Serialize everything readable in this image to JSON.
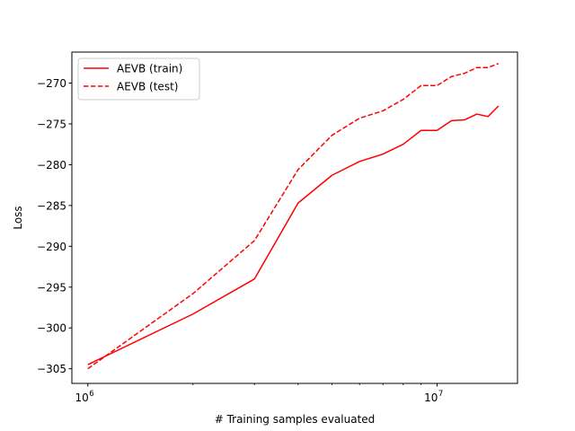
{
  "chart_data": {
    "type": "line",
    "xlabel": "# Training samples evaluated",
    "ylabel": "Loss",
    "xscale": "log",
    "xlim": [
      900000,
      17000000
    ],
    "ylim": [
      -306.8,
      -266.2
    ],
    "x_ticks": [
      {
        "value": 1000000,
        "base": "10",
        "exp": "6"
      },
      {
        "value": 10000000,
        "base": "10",
        "exp": "7"
      }
    ],
    "y_ticks": [
      {
        "value": -305,
        "label": "−305"
      },
      {
        "value": -300,
        "label": "−300"
      },
      {
        "value": -295,
        "label": "−295"
      },
      {
        "value": -290,
        "label": "−290"
      },
      {
        "value": -285,
        "label": "−285"
      },
      {
        "value": -280,
        "label": "−280"
      },
      {
        "value": -275,
        "label": "−275"
      },
      {
        "value": -270,
        "label": "−270"
      }
    ],
    "grid": false,
    "legend_position": "top-left",
    "series": [
      {
        "name": "AEVB (train)",
        "color": "#ff0000",
        "style": "solid",
        "points": [
          [
            1000000,
            -304.5
          ],
          [
            2000000,
            -298.3
          ],
          [
            3000000,
            -294.0
          ],
          [
            4000000,
            -284.7
          ],
          [
            5000000,
            -281.3
          ],
          [
            6000000,
            -279.6
          ],
          [
            7000000,
            -278.7
          ],
          [
            8000000,
            -277.5
          ],
          [
            9000000,
            -275.8
          ],
          [
            10000000,
            -275.8
          ],
          [
            11000000,
            -274.6
          ],
          [
            12000000,
            -274.5
          ],
          [
            13000000,
            -273.8
          ],
          [
            14000000,
            -274.1
          ],
          [
            15000000,
            -272.8
          ]
        ]
      },
      {
        "name": "AEVB (test)",
        "color": "#ff0000",
        "style": "dashed",
        "points": [
          [
            1000000,
            -305.0
          ],
          [
            2000000,
            -295.8
          ],
          [
            3000000,
            -289.3
          ],
          [
            4000000,
            -280.6
          ],
          [
            5000000,
            -276.4
          ],
          [
            6000000,
            -274.3
          ],
          [
            7000000,
            -273.4
          ],
          [
            8000000,
            -272.0
          ],
          [
            9000000,
            -270.3
          ],
          [
            10000000,
            -270.3
          ],
          [
            11000000,
            -269.2
          ],
          [
            12000000,
            -268.8
          ],
          [
            13000000,
            -268.1
          ],
          [
            14000000,
            -268.1
          ],
          [
            15000000,
            -267.6
          ]
        ]
      }
    ]
  }
}
